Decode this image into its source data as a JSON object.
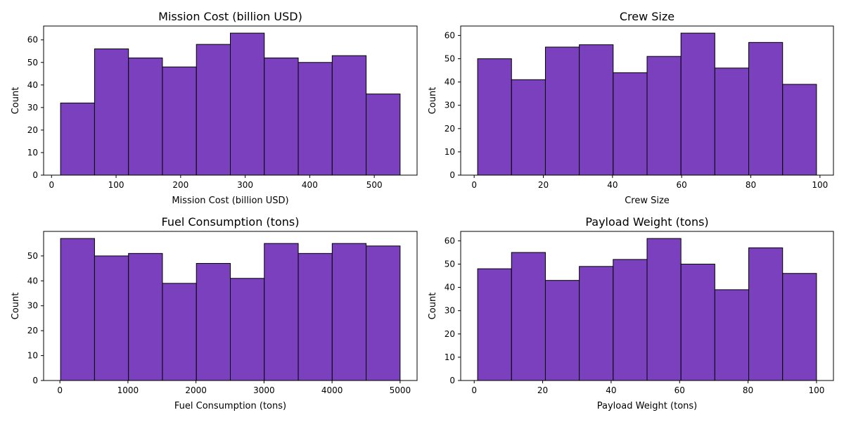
{
  "bar_color": "#7b40bd",
  "edge_color": "#000000",
  "chart_data": [
    {
      "type": "bar",
      "title": "Mission Cost (billion USD)",
      "xlabel": "Mission Cost (billion USD)",
      "ylabel": "Count",
      "bin_edges": [
        14,
        66.6,
        119.2,
        171.8,
        224.4,
        277,
        329.6,
        382.2,
        434.8,
        487.4,
        540
      ],
      "values": [
        32,
        56,
        52,
        48,
        58,
        63,
        52,
        50,
        53,
        36
      ],
      "xlim": [
        -12.3,
        566.3
      ],
      "ylim": [
        0,
        66.15
      ],
      "xticks": [
        0,
        100,
        200,
        300,
        400,
        500
      ],
      "yticks": [
        0,
        10,
        20,
        30,
        40,
        50,
        60
      ]
    },
    {
      "type": "bar",
      "title": "Crew Size",
      "xlabel": "Crew Size",
      "ylabel": "Count",
      "bin_edges": [
        1,
        10.8,
        20.6,
        30.4,
        40.2,
        50,
        59.8,
        69.6,
        79.4,
        89.2,
        99
      ],
      "values": [
        50,
        41,
        55,
        56,
        44,
        51,
        61,
        46,
        57,
        39
      ],
      "xlim": [
        -3.9,
        103.9
      ],
      "ylim": [
        0,
        64.05
      ],
      "xticks": [
        0,
        20,
        40,
        60,
        80,
        100
      ],
      "yticks": [
        0,
        10,
        20,
        30,
        40,
        50,
        60
      ]
    },
    {
      "type": "bar",
      "title": "Fuel Consumption (tons)",
      "xlabel": "Fuel Consumption (tons)",
      "ylabel": "Count",
      "bin_edges": [
        10,
        509,
        1008,
        1507,
        2006,
        2505,
        3004,
        3503,
        4002,
        4501,
        5000
      ],
      "values": [
        57,
        50,
        51,
        39,
        47,
        41,
        55,
        51,
        55,
        54
      ],
      "xlim": [
        -239.5,
        5249.5
      ],
      "ylim": [
        0,
        59.85
      ],
      "xticks": [
        0,
        1000,
        2000,
        3000,
        4000,
        5000
      ],
      "yticks": [
        0,
        10,
        20,
        30,
        40,
        50
      ]
    },
    {
      "type": "bar",
      "title": "Payload Weight (tons)",
      "xlabel": "Payload Weight (tons)",
      "ylabel": "Count",
      "bin_edges": [
        1,
        10.9,
        20.8,
        30.7,
        40.6,
        50.5,
        60.4,
        70.3,
        80.2,
        90.1,
        100
      ],
      "values": [
        48,
        55,
        43,
        49,
        52,
        61,
        50,
        39,
        57,
        46
      ],
      "xlim": [
        -3.95,
        104.95
      ],
      "ylim": [
        0,
        64.05
      ],
      "xticks": [
        0,
        20,
        40,
        60,
        80,
        100
      ],
      "yticks": [
        0,
        10,
        20,
        30,
        40,
        50,
        60
      ]
    }
  ]
}
